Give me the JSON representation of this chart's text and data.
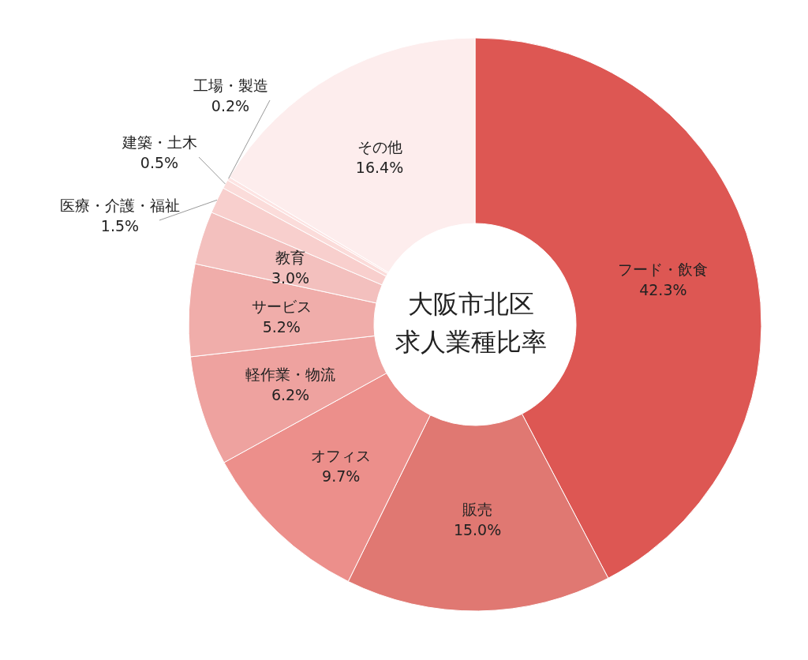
{
  "chart_data": {
    "type": "donut",
    "title": "大阪市北区求人業種比率",
    "categories": [
      "フード・飲食",
      "販売",
      "オフィス",
      "軽作業・物流",
      "サービス",
      "教育",
      "医療・介護・福祉",
      "建築・土木",
      "工場・製造",
      "その他"
    ],
    "values": [
      42.3,
      15.0,
      9.7,
      6.2,
      5.2,
      3.0,
      1.5,
      0.5,
      0.2,
      16.4
    ],
    "value_labels": [
      "42.3%",
      "15.0%",
      "9.7%",
      "6.2%",
      "5.2%",
      "3.0%",
      "1.5%",
      "0.5%",
      "0.2%",
      "16.4%"
    ],
    "colors": [
      "#dd5753",
      "#e07872",
      "#ec8f8b",
      "#eea29f",
      "#f0adaa",
      "#f3c0be",
      "#f8cfcd",
      "#fbdcda",
      "#fde4e3",
      "#fdeded"
    ]
  }
}
